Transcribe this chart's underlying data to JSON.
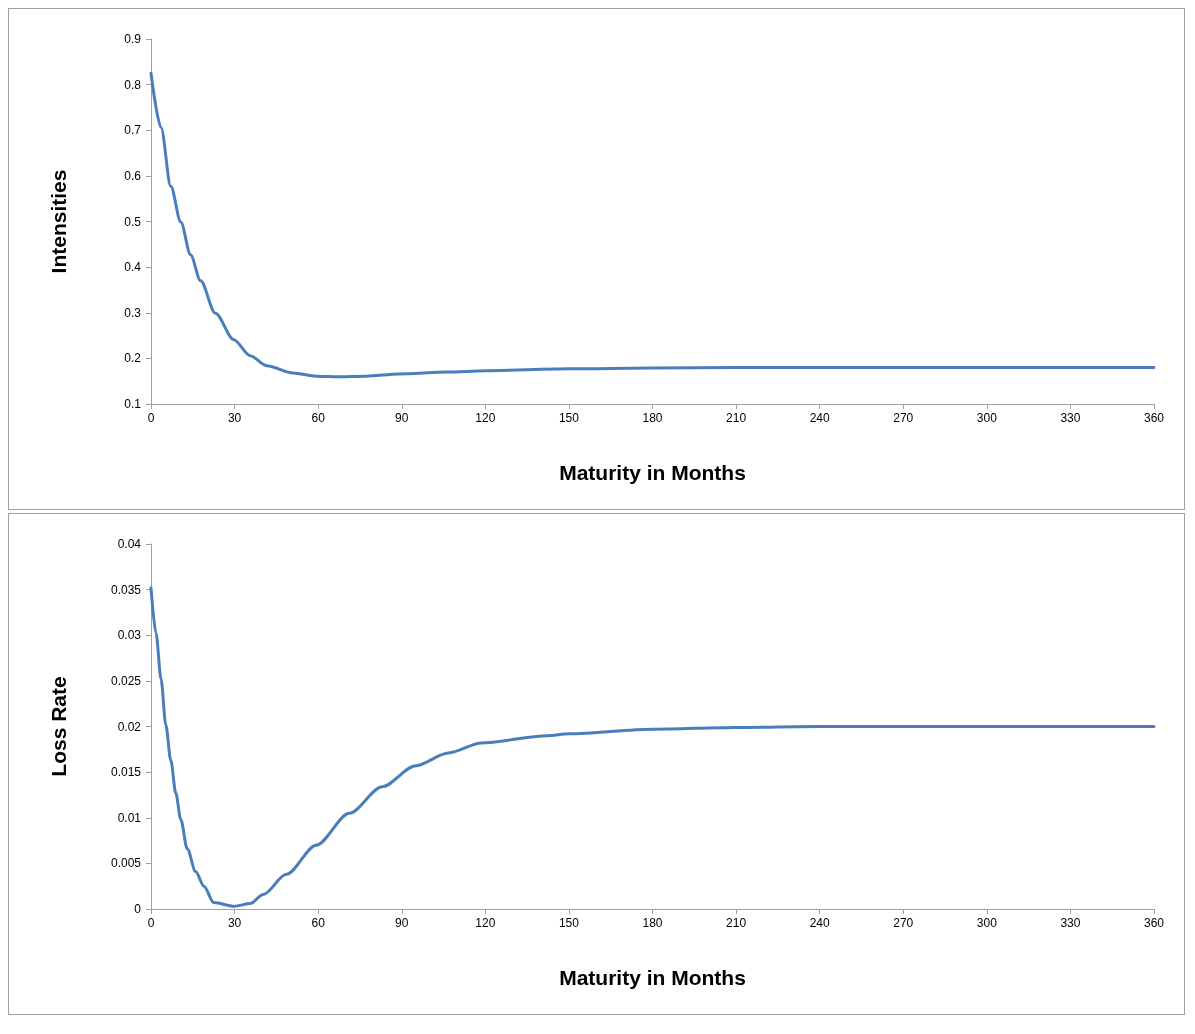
{
  "chart_data": [
    {
      "type": "line",
      "xlabel": "Maturity in Months",
      "ylabel": "Intensities",
      "xlim": [
        0,
        360
      ],
      "xticks": [
        0,
        30,
        60,
        90,
        120,
        150,
        180,
        210,
        240,
        270,
        300,
        330,
        360
      ],
      "ylim": [
        0.1,
        0.9
      ],
      "yticks": [
        0.1,
        0.2,
        0.3,
        0.4,
        0.5,
        0.6,
        0.7,
        0.8,
        0.9
      ],
      "grid": false,
      "marker": "none",
      "line_style": "solid",
      "series": [
        {
          "color": "#4a7ebb",
          "x": [
            0,
            3.6,
            7.1,
            10.7,
            14.2,
            17.8,
            23.1,
            29.7,
            35.6,
            41.5,
            51,
            59.3,
            67.6,
            77,
            89,
            106.7,
            120,
            150,
            180,
            210,
            240,
            270,
            300,
            330,
            360
          ],
          "values": [
            0.825,
            0.706,
            0.577,
            0.499,
            0.427,
            0.37,
            0.299,
            0.241,
            0.206,
            0.184,
            0.168,
            0.161,
            0.16,
            0.161,
            0.166,
            0.17,
            0.173,
            0.177,
            0.179,
            0.18,
            0.18,
            0.18,
            0.18,
            0.18,
            0.18
          ]
        }
      ]
    },
    {
      "type": "line",
      "xlabel": "Maturity in Months",
      "ylabel": "Loss Rate",
      "xlim": [
        0,
        360
      ],
      "xticks": [
        0,
        30,
        60,
        90,
        120,
        150,
        180,
        210,
        240,
        270,
        300,
        330,
        360
      ],
      "ylim": [
        0,
        0.04
      ],
      "yticks": [
        0,
        0.005,
        0.01,
        0.015,
        0.02,
        0.025,
        0.03,
        0.035,
        0.04
      ],
      "grid": false,
      "marker": "none",
      "line_style": "solid",
      "series": [
        {
          "color": "#4a7ebb",
          "x": [
            0,
            1.8,
            3.6,
            5.3,
            7.1,
            8.9,
            10.7,
            13,
            16,
            19,
            22.5,
            30,
            35.6,
            40.3,
            48.6,
            59.3,
            71.2,
            83,
            95,
            106.7,
            118.6,
            142.3,
            150,
            180,
            210,
            240,
            270,
            300,
            330,
            360
          ],
          "values": [
            0.0352,
            0.0302,
            0.0252,
            0.0202,
            0.0163,
            0.0127,
            0.0098,
            0.0066,
            0.0041,
            0.0025,
            0.0007,
            0.0003,
            0.0006,
            0.0016,
            0.0038,
            0.007,
            0.0105,
            0.0134,
            0.0157,
            0.0171,
            0.0182,
            0.019,
            0.0192,
            0.0197,
            0.0199,
            0.02,
            0.02,
            0.02,
            0.02,
            0.02
          ]
        }
      ]
    }
  ]
}
